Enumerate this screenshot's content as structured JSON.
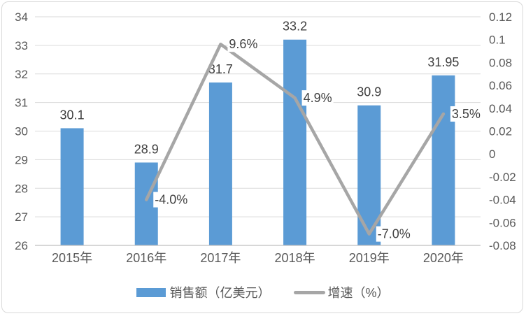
{
  "chart_data": {
    "type": "combo",
    "title": "",
    "categories": [
      "2015年",
      "2016年",
      "2017年",
      "2018年",
      "2019年",
      "2020年"
    ],
    "series": [
      {
        "name": "销售额（亿美元）",
        "type": "bar",
        "axis": "left",
        "color": "#5B9BD5",
        "values": [
          30.1,
          28.9,
          31.7,
          33.2,
          30.9,
          31.95
        ],
        "data_labels": [
          "30.1",
          "28.9",
          "31.7",
          "33.2",
          "30.9",
          "31.95"
        ]
      },
      {
        "name": "增速（%）",
        "type": "line",
        "axis": "right",
        "color": "#A6A6A6",
        "values": [
          null,
          -0.04,
          0.096,
          0.049,
          -0.07,
          0.035
        ],
        "data_labels": [
          null,
          "-4.0%",
          "9.6%",
          "4.9%",
          "-7.0%",
          "3.5%"
        ]
      }
    ],
    "left_axis": {
      "min": 26,
      "max": 34,
      "step": 1,
      "tick_labels": [
        "34",
        "33",
        "32",
        "31",
        "30",
        "29",
        "28",
        "27",
        "26"
      ]
    },
    "right_axis": {
      "min": -0.08,
      "max": 0.12,
      "step": 0.02,
      "tick_labels": [
        "0.12",
        "0.1",
        "0.08",
        "0.06",
        "0.04",
        "0.02",
        "0",
        "-0.02",
        "-0.04",
        "-0.06",
        "-0.08"
      ]
    },
    "grid": true,
    "legend_position": "bottom"
  },
  "legend": {
    "items": [
      {
        "label": "销售额（亿美元）",
        "swatch": "bar"
      },
      {
        "label": "增速（%）",
        "swatch": "line"
      }
    ]
  },
  "colors": {
    "bar": "#5B9BD5",
    "line": "#A6A6A6",
    "gridline": "#D9D9D9",
    "axis_line": "#BFBFBF",
    "tick_text": "#595959",
    "category_text": "#595959",
    "data_label_text": "#404040",
    "legend_text": "#595959",
    "border": "#D9D9D9",
    "background": "#FFFFFF"
  }
}
